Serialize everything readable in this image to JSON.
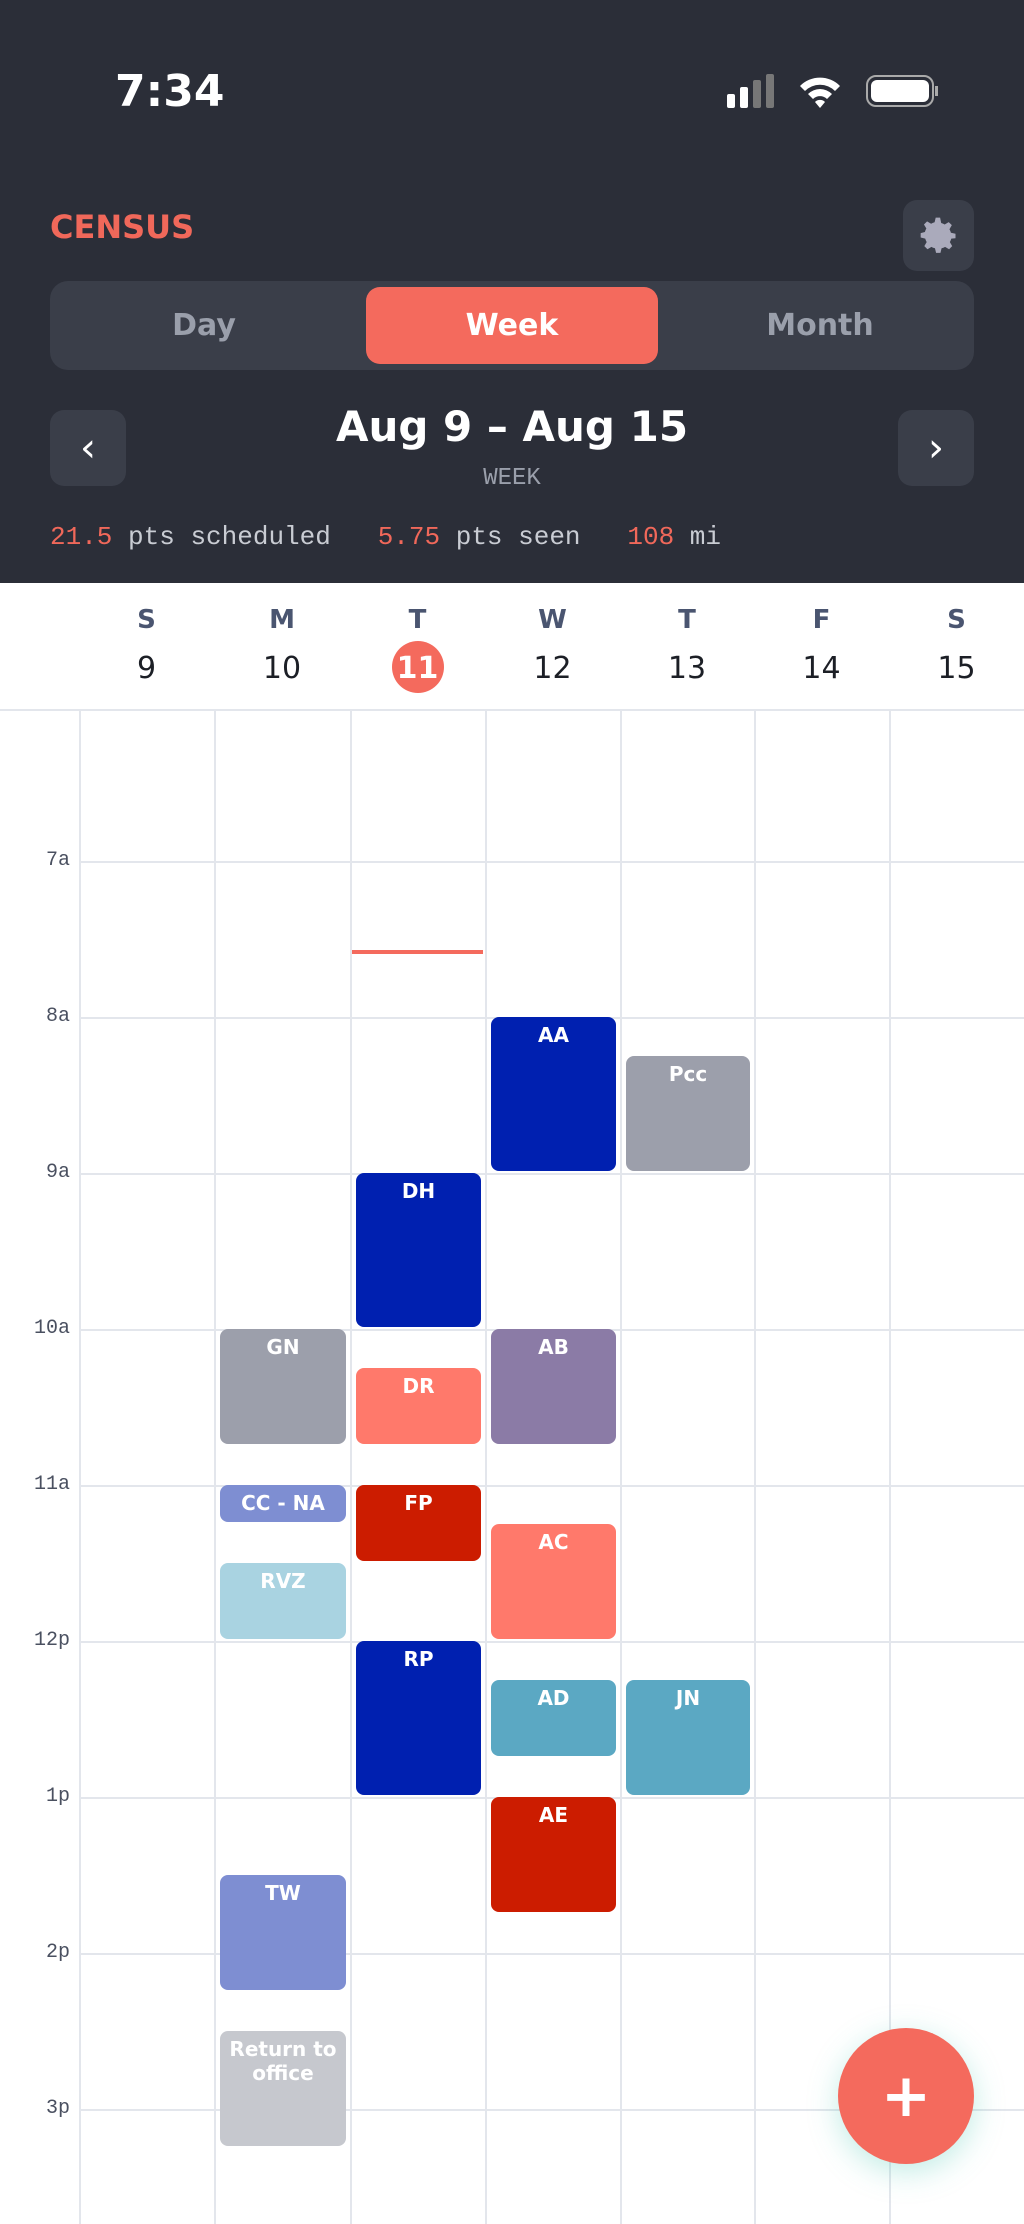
{
  "status": {
    "time": "7:34"
  },
  "header": {
    "title": "CENSUS",
    "tabs": [
      "Day",
      "Week",
      "Month"
    ],
    "selected_tab": "Week",
    "prev": "‹",
    "next": "›",
    "range": "Aug 9 – Aug 15",
    "range_label": "WEEK",
    "stats": [
      {
        "value": "21.5",
        "label": "pts scheduled"
      },
      {
        "value": "5.75",
        "label": "pts seen"
      },
      {
        "value": "108",
        "label": "mi"
      }
    ]
  },
  "days": [
    {
      "letter": "S",
      "date": "9"
    },
    {
      "letter": "M",
      "date": "10"
    },
    {
      "letter": "T",
      "date": "11",
      "today": true
    },
    {
      "letter": "W",
      "date": "12"
    },
    {
      "letter": "T",
      "date": "13"
    },
    {
      "letter": "F",
      "date": "14"
    },
    {
      "letter": "S",
      "date": "15"
    }
  ],
  "hours": [
    "7a",
    "8a",
    "9a",
    "10a",
    "11a",
    "12p",
    "1p",
    "2p",
    "3p"
  ],
  "events": [
    {
      "label": "AA",
      "color": "#0020b0"
    },
    {
      "label": "Pcc",
      "color": "#9c9fab"
    },
    {
      "label": "DH",
      "color": "#0020b0"
    },
    {
      "label": "GN",
      "color": "#9c9fab"
    },
    {
      "label": "DR",
      "color": "#ff796b"
    },
    {
      "label": "AB",
      "color": "#8b7ba6"
    },
    {
      "label": "CC - NA",
      "color": "#7e8ed2"
    },
    {
      "label": "FP",
      "color": "#cc1c00"
    },
    {
      "label": "AC",
      "color": "#ff796b"
    },
    {
      "label": "RVZ",
      "color": "#a9d3e1"
    },
    {
      "label": "RP",
      "color": "#0020b0"
    },
    {
      "label": "AD",
      "color": "#5ba8c3"
    },
    {
      "label": "JN",
      "color": "#5ba8c3"
    },
    {
      "label": "AE",
      "color": "#cc1c00"
    },
    {
      "label": "TW",
      "color": "#7e8ed2"
    },
    {
      "label": "Return to office",
      "color": "#c6c8ce"
    }
  ],
  "fab": "+"
}
